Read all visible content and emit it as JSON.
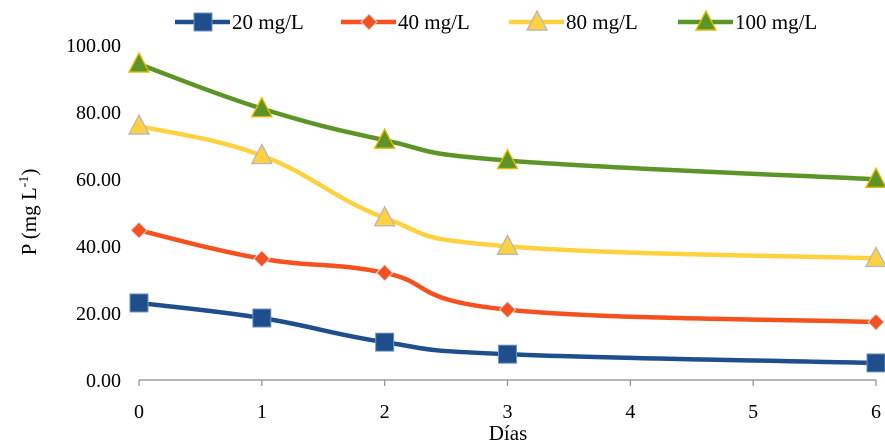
{
  "chart_data": {
    "type": "line",
    "smooth": true,
    "xlabel": "Días",
    "ylabel": "P (mg L",
    "ylabel_sup": "-1",
    "ylabel_close": ")",
    "xlim": [
      0,
      6
    ],
    "ylim": [
      0,
      100
    ],
    "x_ticks": [
      "0",
      "1",
      "2",
      "3",
      "4",
      "5",
      "6"
    ],
    "y_ticks": [
      "0.00",
      "20.00",
      "40.00",
      "60.00",
      "80.00",
      "100.00"
    ],
    "grid": false,
    "legend_position": "top",
    "series": [
      {
        "name": "20 mg/L",
        "color": "#1F4E8C",
        "marker": "square",
        "x": [
          0,
          1,
          2,
          3,
          6
        ],
        "values": [
          23.0,
          18.5,
          11.3,
          7.7,
          5.1
        ]
      },
      {
        "name": "40 mg/L",
        "color": "#F4511E",
        "marker": "diamond",
        "x": [
          0,
          1,
          2,
          3,
          6
        ],
        "values": [
          44.7,
          36.2,
          32.0,
          21.0,
          17.3
        ]
      },
      {
        "name": "80 mg/L",
        "color": "#FFD13F",
        "marker": "triangle",
        "x": [
          0,
          1,
          2,
          3,
          6
        ],
        "values": [
          75.8,
          67.0,
          48.4,
          39.9,
          36.3
        ]
      },
      {
        "name": "100 mg/L",
        "color": "#5D9428",
        "marker": "triangle",
        "x": [
          0,
          1,
          2,
          3,
          6
        ],
        "values": [
          94.3,
          81.0,
          71.6,
          65.5,
          59.9
        ]
      }
    ]
  }
}
